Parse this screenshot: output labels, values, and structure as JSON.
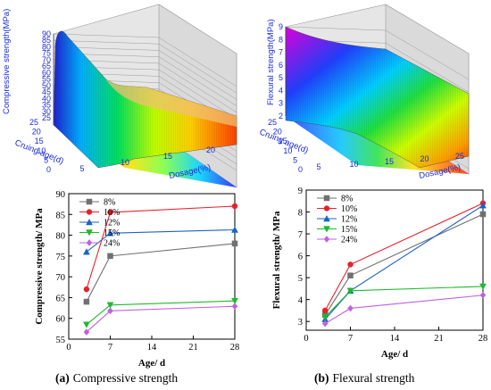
{
  "surface_charts": [
    {
      "z_label": "Compressive strength(MPa)",
      "z_ticks": [
        "25",
        "30",
        "35",
        "40",
        "45",
        "50",
        "55",
        "60",
        "65",
        "70",
        "75",
        "80",
        "85",
        "90"
      ],
      "cure_label": "Cruing age(d)",
      "cure_ticks": [
        "0",
        "5",
        "10",
        "15",
        "20",
        "25"
      ],
      "dose_label": "Dosage(%)",
      "dose_ticks": [
        "5",
        "10",
        "15",
        "20"
      ]
    },
    {
      "z_label": "Flexural strength(MPa)",
      "z_ticks": [
        "2",
        "3",
        "4",
        "5",
        "6",
        "7",
        "8",
        "9"
      ],
      "cure_label": "Cruing age(d)",
      "cure_ticks": [
        "0",
        "5",
        "10",
        "15",
        "20",
        "25"
      ],
      "dose_label": "Dosage(%)",
      "dose_ticks": [
        "5",
        "10",
        "15",
        "20",
        "25"
      ]
    }
  ],
  "chart_data": [
    {
      "type": "line",
      "panel": "compressive",
      "caption_prefix": "(a)",
      "caption": "Compressive strength",
      "xlabel": "Age/ d",
      "ylabel": "Compressive strength/ MPa",
      "x_ticks": [
        "0",
        "7",
        "14",
        "21",
        "28"
      ],
      "y_ticks": [
        "55",
        "60",
        "65",
        "70",
        "75",
        "80",
        "85",
        "90"
      ],
      "xlim": [
        0,
        28
      ],
      "ylim": [
        55,
        90
      ],
      "x": [
        3,
        7,
        28
      ],
      "legend_position": "top-left",
      "series": [
        {
          "name": "8%",
          "color": "#707070",
          "marker": "square",
          "values": [
            64.0,
            75.0,
            78.0
          ]
        },
        {
          "name": "10%",
          "color": "#e8202a",
          "marker": "circle",
          "values": [
            67.0,
            85.5,
            87.0
          ]
        },
        {
          "name": "12%",
          "color": "#1a63c8",
          "marker": "triangle-up",
          "values": [
            76.0,
            80.5,
            81.3
          ]
        },
        {
          "name": "15%",
          "color": "#20b830",
          "marker": "triangle-down",
          "values": [
            58.5,
            63.2,
            64.2
          ]
        },
        {
          "name": "24%",
          "color": "#c060e0",
          "marker": "diamond",
          "values": [
            56.7,
            61.8,
            62.9
          ]
        }
      ]
    },
    {
      "type": "line",
      "panel": "flexural",
      "caption_prefix": "(b)",
      "caption": "Flexural strength",
      "xlabel": "Age/ d",
      "ylabel": "Flexural strength/ MPa",
      "x_ticks": [
        "0",
        "7",
        "14",
        "21",
        "28"
      ],
      "y_ticks": [
        "3",
        "4",
        "5",
        "6",
        "7",
        "8",
        "9"
      ],
      "xlim": [
        0,
        28
      ],
      "ylim": [
        2.6,
        9
      ],
      "x": [
        3,
        7,
        28
      ],
      "legend_position": "top-left",
      "series": [
        {
          "name": "8%",
          "color": "#707070",
          "marker": "square",
          "values": [
            3.3,
            5.1,
            7.9
          ]
        },
        {
          "name": "10%",
          "color": "#e8202a",
          "marker": "circle",
          "values": [
            3.5,
            5.6,
            8.4
          ]
        },
        {
          "name": "12%",
          "color": "#1a63c8",
          "marker": "triangle-up",
          "values": [
            3.1,
            4.4,
            8.3
          ]
        },
        {
          "name": "15%",
          "color": "#20b830",
          "marker": "triangle-down",
          "values": [
            3.2,
            4.4,
            4.6
          ]
        },
        {
          "name": "24%",
          "color": "#c060e0",
          "marker": "diamond",
          "values": [
            2.9,
            3.6,
            4.2
          ]
        }
      ]
    }
  ]
}
